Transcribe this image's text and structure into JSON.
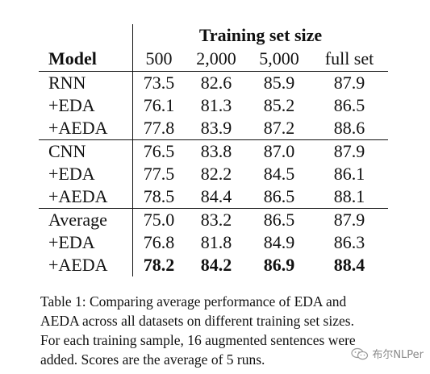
{
  "table": {
    "group_header": "Training set size",
    "model_header": "Model",
    "columns": [
      "500",
      "2,000",
      "5,000",
      "full set"
    ],
    "groups": [
      {
        "rows": [
          {
            "label": "RNN",
            "values": [
              "73.5",
              "82.6",
              "85.9",
              "87.9"
            ]
          },
          {
            "label": "+EDA",
            "values": [
              "76.1",
              "81.3",
              "85.2",
              "86.5"
            ]
          },
          {
            "label": "+AEDA",
            "values": [
              "77.8",
              "83.9",
              "87.2",
              "88.6"
            ]
          }
        ]
      },
      {
        "rows": [
          {
            "label": "CNN",
            "values": [
              "76.5",
              "83.8",
              "87.0",
              "87.9"
            ]
          },
          {
            "label": "+EDA",
            "values": [
              "77.5",
              "82.2",
              "84.5",
              "86.1"
            ]
          },
          {
            "label": "+AEDA",
            "values": [
              "78.5",
              "84.4",
              "86.5",
              "88.1"
            ]
          }
        ]
      },
      {
        "rows": [
          {
            "label": "Average",
            "values": [
              "75.0",
              "83.2",
              "86.5",
              "87.9"
            ]
          },
          {
            "label": "+EDA",
            "values": [
              "76.8",
              "81.8",
              "84.9",
              "86.3"
            ]
          },
          {
            "label": "+AEDA",
            "values": [
              "78.2",
              "84.2",
              "86.9",
              "88.4"
            ],
            "bold": true
          }
        ]
      }
    ]
  },
  "caption": {
    "lines": [
      "Table 1: Comparing average performance of EDA and",
      "AEDA across all datasets on different training set sizes.",
      "For each training sample, 16 augmented sentences were",
      "added. Scores are the average of 5 runs."
    ]
  },
  "watermark": {
    "text": "布尔NLPer",
    "icon": "wechat-icon"
  }
}
